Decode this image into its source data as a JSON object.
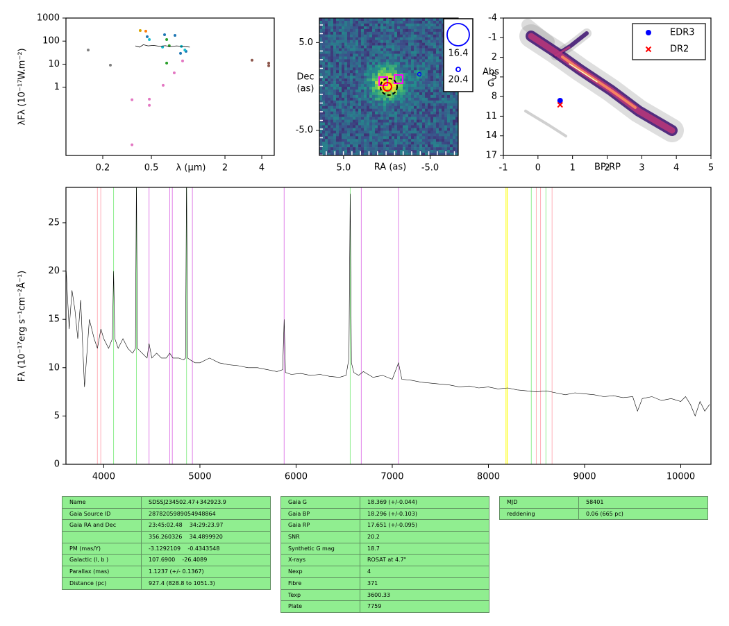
{
  "chart_data": [
    {
      "type": "scatter",
      "xscale": "log",
      "yscale": "log",
      "xlim": [
        0.1,
        5.06
      ],
      "ylim": [
        0.0011,
        1000
      ],
      "xticks": [
        0.2,
        0.5,
        2,
        4
      ],
      "yticks": [
        1,
        10,
        100,
        1000
      ],
      "xlabel": "λ (μm)",
      "ylabel": "λFλ (10⁻¹⁷W.m⁻²)",
      "series": [
        {
          "mode": "markers",
          "color": "#7f7f7f",
          "x": [
            0.152,
            0.231
          ],
          "values": [
            41,
            9.1
          ]
        },
        {
          "mode": "markers",
          "color": "#d9a400",
          "x": [
            0.405
          ],
          "values": [
            288
          ]
        },
        {
          "mode": "markers",
          "color": "#ff7f0e",
          "x": [
            0.45
          ],
          "values": [
            270
          ]
        },
        {
          "mode": "markers",
          "color": "#1f77b4",
          "x": [
            0.462,
            0.641,
            0.78,
            0.866,
            0.96
          ],
          "values": [
            155,
            189,
            177,
            29.4,
            36
          ]
        },
        {
          "mode": "markers",
          "color": "#17becf",
          "x": [
            0.481,
            0.617,
            0.94,
            0.88
          ],
          "values": [
            117,
            55,
            41,
            59
          ]
        },
        {
          "mode": "markers",
          "color": "#2ca02c",
          "x": [
            0.667,
            0.667,
            0.7
          ],
          "values": [
            117,
            11.2,
            63
          ]
        },
        {
          "mode": "markers",
          "color": "#e377c2",
          "x": [
            0.347,
            0.347,
            0.481,
            0.481,
            0.624,
            0.769,
            0.9
          ],
          "values": [
            0.286,
            0.0032,
            0.303,
            0.164,
            1.22,
            4.2,
            13.8
          ]
        },
        {
          "mode": "markers",
          "color": "#8c564b",
          "x": [
            3.33,
            4.56,
            4.56
          ],
          "values": [
            14.8,
            11.2,
            8.5
          ]
        },
        {
          "mode": "line",
          "color": "#000000",
          "x": [
            0.37,
            0.4,
            0.43,
            0.47,
            0.52,
            0.58,
            0.65,
            0.72,
            0.8,
            0.88,
            0.95,
            1.03
          ],
          "values": [
            62,
            55,
            70,
            62,
            65,
            60,
            63,
            58,
            62,
            60,
            57,
            55
          ]
        }
      ]
    },
    {
      "type": "image",
      "xlim": [
        7.8,
        -8.25
      ],
      "ylim": [
        -7.88,
        7.8
      ],
      "xticks": [
        {
          "value": 5,
          "label": "5.0"
        },
        {
          "value": -5,
          "label": "-5.0"
        }
      ],
      "yticks": [
        {
          "value": 5,
          "label": "5.0"
        },
        {
          "value": -5,
          "label": "-5.0"
        }
      ],
      "xlabel": "RA (as)",
      "ylabel": [
        "Dec",
        "(as)"
      ],
      "legend": [
        "16.4",
        "20.4"
      ]
    },
    {
      "type": "scatter",
      "xlim": [
        -1,
        5
      ],
      "ylim": [
        17,
        -4
      ],
      "xticks": [
        -1,
        0,
        1,
        2,
        3,
        4,
        5
      ],
      "yticks": [
        -4,
        -1,
        2,
        5,
        8,
        11,
        14,
        17
      ],
      "xlabel": "BP-RP",
      "ylabel": [
        "Abs",
        "G"
      ],
      "legend_loc": "upper right",
      "series": [
        {
          "name": "EDR3",
          "mode": "markers",
          "marker": "circle",
          "color": "#0000ff",
          "x": [
            0.64
          ],
          "values": [
            8.62
          ]
        },
        {
          "name": "DR2",
          "mode": "markers",
          "marker": "x",
          "color": "#ff0000",
          "x": [
            0.64
          ],
          "values": [
            9.26
          ]
        }
      ]
    },
    {
      "type": "line",
      "xlim": [
        3607,
        10314
      ],
      "ylim": [
        0,
        28.66
      ],
      "xticks": [
        4000,
        5000,
        6000,
        7000,
        8000,
        9000,
        10000
      ],
      "yticks": [
        0,
        5,
        10,
        15,
        20,
        25
      ],
      "ylabel": "Fλ (10⁻¹⁷erg s⁻¹cm⁻²Å⁻¹)",
      "lines": [
        {
          "x": 3934,
          "color": "#ffb0b8"
        },
        {
          "x": 3969,
          "color": "#ffb0b8"
        },
        {
          "x": 4102,
          "color": "#90ee90"
        },
        {
          "x": 4340,
          "color": "#90ee90"
        },
        {
          "x": 4471,
          "color": "#e080e8"
        },
        {
          "x": 4686,
          "color": "#e080e8"
        },
        {
          "x": 4713,
          "color": "#e080e8"
        },
        {
          "x": 4861,
          "color": "#90ee90"
        },
        {
          "x": 4922,
          "color": "#e080e8"
        },
        {
          "x": 5876,
          "color": "#e080e8"
        },
        {
          "x": 6563,
          "color": "#90ee90"
        },
        {
          "x": 6678,
          "color": "#e080e8"
        },
        {
          "x": 7065,
          "color": "#e080e8"
        },
        {
          "x": 8183,
          "color": "#ffff00"
        },
        {
          "x": 8195,
          "color": "#ffff00"
        },
        {
          "x": 8446,
          "color": "#90ee90"
        },
        {
          "x": 8498,
          "color": "#ffb0b8"
        },
        {
          "x": 8542,
          "color": "#ffb0b8"
        },
        {
          "x": 8598,
          "color": "#90ee90"
        },
        {
          "x": 8662,
          "color": "#ffb0b8"
        }
      ],
      "series": [
        {
          "mode": "line",
          "color": "#000000",
          "x": [
            3610,
            3640,
            3670,
            3700,
            3730,
            3760,
            3800,
            3850,
            3900,
            3934,
            3970,
            4000,
            4050,
            4090,
            4102,
            4115,
            4150,
            4200,
            4250,
            4300,
            4330,
            4340,
            4350,
            4400,
            4450,
            4471,
            4500,
            4550,
            4600,
            4650,
            4686,
            4720,
            4780,
            4830,
            4850,
            4861,
            4872,
            4900,
            4950,
            5000,
            5100,
            5200,
            5300,
            5400,
            5500,
            5600,
            5700,
            5800,
            5860,
            5876,
            5890,
            5950,
            6050,
            6150,
            6250,
            6350,
            6450,
            6520,
            6550,
            6563,
            6576,
            6600,
            6650,
            6700,
            6800,
            6900,
            7000,
            7065,
            7100,
            7200,
            7300,
            7400,
            7500,
            7600,
            7700,
            7800,
            7900,
            8000,
            8100,
            8200,
            8300,
            8400,
            8500,
            8600,
            8700,
            8800,
            8900,
            9000,
            9100,
            9200,
            9300,
            9400,
            9500,
            9550,
            9600,
            9700,
            9800,
            9900,
            10000,
            10050,
            10100,
            10150,
            10200,
            10250,
            10300
          ],
          "values": [
            20,
            14,
            18,
            16,
            13,
            17,
            8,
            15,
            13,
            12,
            14,
            13,
            12,
            13,
            20,
            13,
            12,
            13,
            12,
            11.5,
            12,
            30,
            12,
            11.5,
            11,
            12.5,
            11,
            11.5,
            11,
            11,
            11.5,
            11,
            11,
            10.8,
            11,
            30,
            11,
            10.8,
            10.5,
            10.5,
            11,
            10.5,
            10.3,
            10.2,
            10,
            10,
            9.8,
            9.6,
            9.8,
            15,
            9.5,
            9.3,
            9.4,
            9.2,
            9.3,
            9.1,
            9.0,
            9.2,
            11,
            28,
            10.5,
            9.5,
            9.2,
            9.6,
            9.0,
            9.2,
            8.8,
            10.5,
            8.8,
            8.7,
            8.5,
            8.4,
            8.3,
            8.2,
            8.0,
            8.1,
            7.9,
            8.0,
            7.8,
            7.9,
            7.7,
            7.6,
            7.5,
            7.6,
            7.4,
            7.2,
            7.4,
            7.3,
            7.2,
            7.0,
            7.1,
            6.9,
            7.0,
            5.5,
            6.8,
            7.0,
            6.6,
            6.8,
            6.5,
            7,
            6.2,
            5,
            6.5,
            5.5,
            6.2
          ]
        }
      ]
    }
  ],
  "tables": [
    {
      "rows": [
        [
          "Name",
          "SDSSJ234502.47+342923.9"
        ],
        [
          "Gaia Source ID",
          "2878205989054948864"
        ],
        [
          "Gaia RA and Dec",
          "23:45:02.48    34:29:23.97"
        ],
        [
          null,
          "356.260326    34.4899920"
        ],
        [
          "PM (mas/Y)",
          "-3.1292109    -0.4343548"
        ],
        [
          "Galactic (l, b )",
          "107.6900    -26.4089"
        ],
        [
          "Parallax (mas)",
          "1.1237 (+/- 0.1367)"
        ],
        [
          "Distance (pc)",
          "927.4 (828.8 to 1051.3)"
        ]
      ]
    },
    {
      "rows": [
        [
          "Gaia G",
          "18.369 (+/-0.044)"
        ],
        [
          "Gaia BP",
          "18.296 (+/-0.103)"
        ],
        [
          "Gaia RP",
          "17.651 (+/-0.095)"
        ],
        [
          "SNR",
          "20.2"
        ],
        [
          "Synthetic G mag",
          "18.7"
        ],
        [
          "X-rays",
          "ROSAT at 4.7\""
        ],
        [
          "Nexp",
          "4"
        ],
        [
          "Fibre",
          "371"
        ],
        [
          "Texp",
          "3600.33"
        ],
        [
          "Plate",
          "7759"
        ]
      ]
    },
    {
      "rows": [
        [
          "MJD",
          "58401"
        ],
        [
          "reddening",
          "0.06 (665 pc)"
        ]
      ]
    }
  ]
}
